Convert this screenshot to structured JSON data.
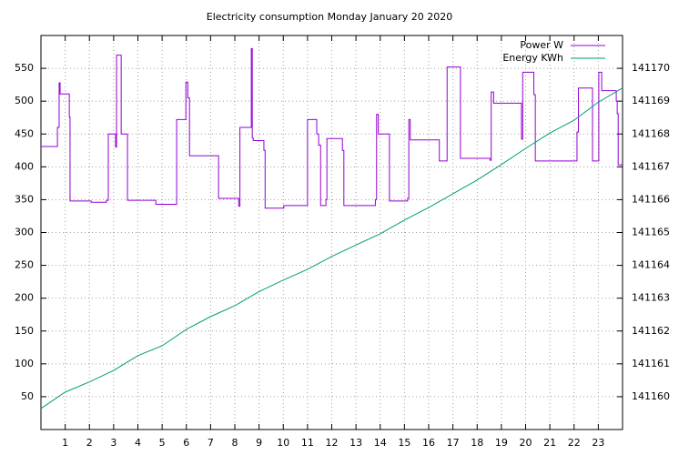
{
  "chart_data": {
    "type": "line",
    "title": "Electricity consumption Monday January 20 2020",
    "xlim": [
      0,
      24
    ],
    "xticks": [
      1,
      2,
      3,
      4,
      5,
      6,
      7,
      8,
      9,
      10,
      11,
      12,
      13,
      14,
      15,
      16,
      17,
      18,
      19,
      20,
      21,
      22,
      23
    ],
    "ylim": [
      0,
      600
    ],
    "yticks": [
      50,
      100,
      150,
      200,
      250,
      300,
      350,
      400,
      450,
      500,
      550
    ],
    "y2lim": [
      141159,
      141171
    ],
    "y2ticks": [
      141160,
      141161,
      141162,
      141163,
      141164,
      141165,
      141166,
      141167,
      141168,
      141169,
      141170
    ],
    "grid": true,
    "legend": "top-right",
    "series": [
      {
        "name": "Power W",
        "color": "#9400d3",
        "x": [
          0,
          0.68,
          0.68,
          0.75,
          0.75,
          0.79,
          0.79,
          1.17,
          1.17,
          1.2,
          1.2,
          2.07,
          2.07,
          2.7,
          2.7,
          2.78,
          2.78,
          3.08,
          3.08,
          3.12,
          3.12,
          3.31,
          3.31,
          3.57,
          3.57,
          4.74,
          4.74,
          5.6,
          5.6,
          5.98,
          5.98,
          6.06,
          6.06,
          6.13,
          6.13,
          7.33,
          7.33,
          8.16,
          8.16,
          8.21,
          8.21,
          8.68,
          8.68,
          8.72,
          8.72,
          8.76,
          8.76,
          9.2,
          9.2,
          9.25,
          9.25,
          10.02,
          10.02,
          11.0,
          11.0,
          11.38,
          11.38,
          11.46,
          11.46,
          11.54,
          11.54,
          11.76,
          11.76,
          11.8,
          11.8,
          12.44,
          12.44,
          12.5,
          12.5,
          13.8,
          13.8,
          13.85,
          13.85,
          13.92,
          13.92,
          14.38,
          14.38,
          15.13,
          15.13,
          15.18,
          15.18,
          15.24,
          15.24,
          16.44,
          16.44,
          16.76,
          16.76,
          17.31,
          17.31,
          18.53,
          18.53,
          18.58,
          18.58,
          18.68,
          18.68,
          19.83,
          19.83,
          19.88,
          19.88,
          20.34,
          20.34,
          20.4,
          20.4,
          22.12,
          22.12,
          22.18,
          22.18,
          22.76,
          22.76,
          23.02,
          23.02,
          23.14,
          23.14,
          23.74,
          23.74,
          23.78,
          23.78,
          23.82,
          23.82,
          24
        ],
        "values": [
          431,
          431,
          460,
          460,
          528,
          528,
          511,
          511,
          476,
          476,
          348,
          348,
          346,
          346,
          349,
          349,
          450,
          450,
          430,
          430,
          570,
          570,
          450,
          450,
          349,
          349,
          343,
          343,
          472,
          472,
          529,
          529,
          505,
          505,
          417,
          417,
          352,
          352,
          340,
          340,
          460,
          460,
          580,
          580,
          444,
          444,
          440,
          440,
          425,
          425,
          337,
          337,
          341,
          341,
          472,
          472,
          450,
          450,
          433,
          433,
          341,
          341,
          350,
          350,
          443,
          443,
          425,
          425,
          341,
          341,
          350,
          350,
          480,
          480,
          450,
          450,
          348,
          348,
          352,
          352,
          472,
          472,
          441,
          441,
          409,
          409,
          552,
          552,
          413,
          413,
          410,
          410,
          514,
          514,
          497,
          497,
          442,
          442,
          544,
          544,
          510,
          510,
          409,
          409,
          453,
          453,
          520,
          520,
          409,
          409,
          544,
          544,
          516,
          516,
          500,
          500,
          481,
          481,
          403,
          403
        ]
      },
      {
        "name": "Energy KWh",
        "color": "#009e73",
        "axis": "y2",
        "x": [
          0,
          1,
          2,
          3,
          4,
          5,
          6,
          7,
          8,
          9,
          10,
          11,
          12,
          13,
          14,
          15,
          16,
          17,
          18,
          19,
          20,
          21,
          22,
          23,
          24
        ],
        "values": [
          141159.64,
          141160.14,
          141160.45,
          141160.8,
          141161.25,
          141161.55,
          141162.05,
          141162.44,
          141162.77,
          141163.2,
          141163.55,
          141163.88,
          141164.27,
          141164.62,
          141164.96,
          141165.38,
          141165.76,
          141166.18,
          141166.6,
          141167.07,
          141167.56,
          141168.03,
          141168.42,
          141168.97,
          141169.4
        ]
      }
    ]
  }
}
